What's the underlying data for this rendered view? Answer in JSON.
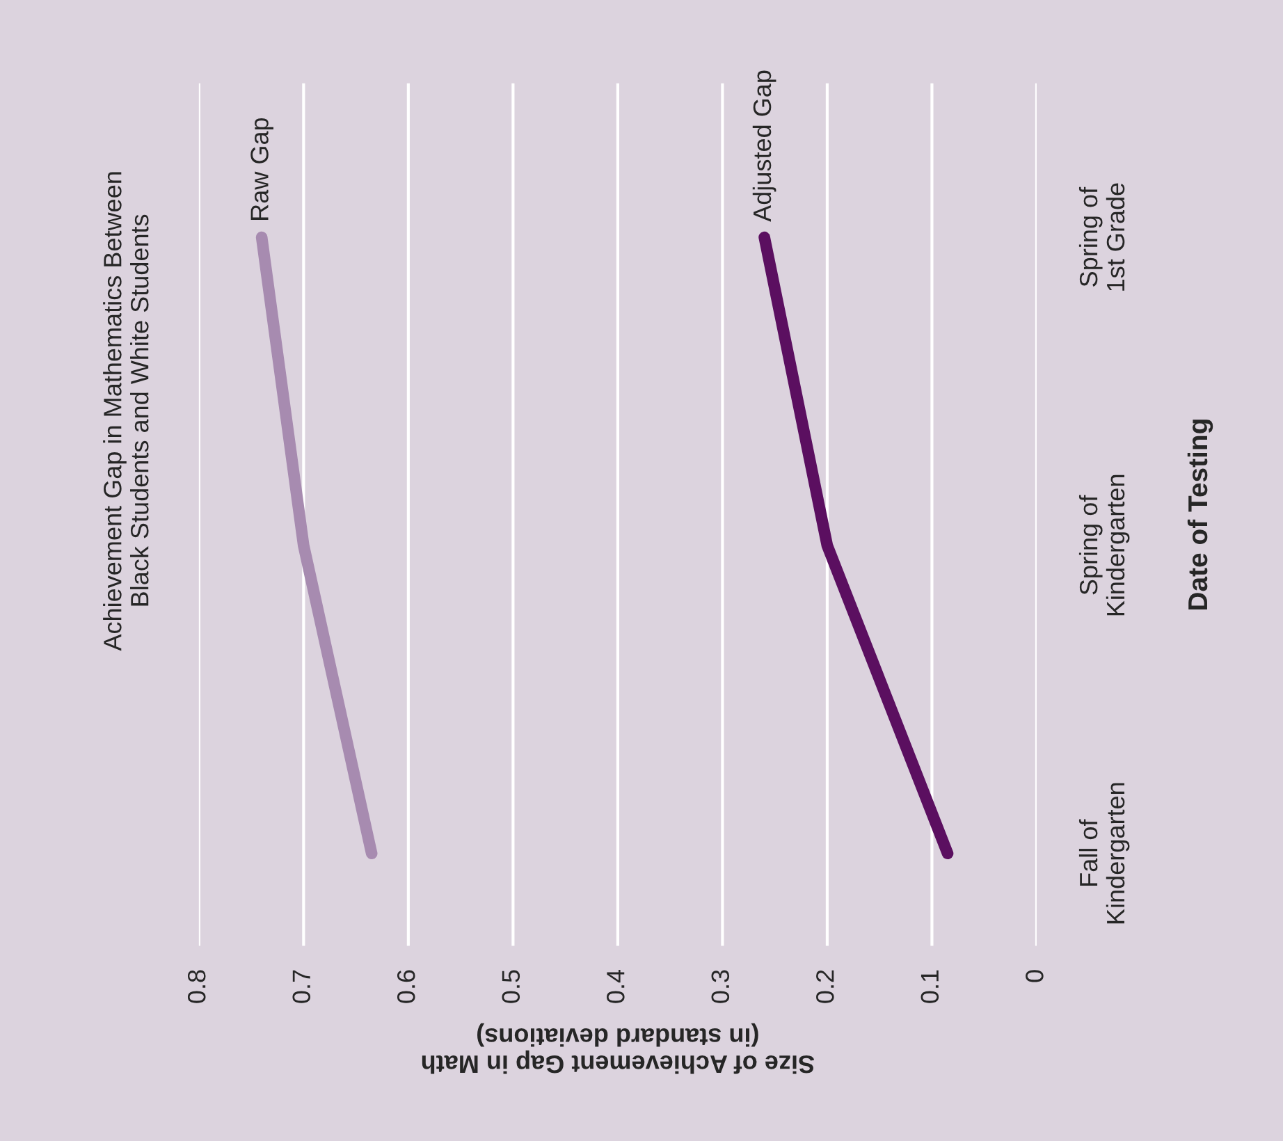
{
  "chart_data": {
    "type": "line",
    "orientation": "horizontal",
    "title": "Achievement Gap in Mathematics Between\nBlack Students and White Students",
    "xlabel": "Size of Achievement Gap in Math\n(in standard deviations)",
    "ylabel": "Date of Testing",
    "categories": [
      "Spring of\n1st Grade",
      "Spring of\nKindergarten",
      "Fall of\nKindergarten"
    ],
    "series": [
      {
        "name": "Raw Gap",
        "color": "#a78bb0",
        "values": [
          0.74,
          0.7,
          0.635
        ]
      },
      {
        "name": "Adjusted Gap",
        "color": "#5b0f60",
        "values": [
          0.26,
          0.2,
          0.085
        ]
      }
    ],
    "xlim": [
      0.8,
      0
    ],
    "xticks": [
      0,
      0.1,
      0.2,
      0.3,
      0.4,
      0.5,
      0.6,
      0.7,
      0.8
    ],
    "grid": "x"
  }
}
